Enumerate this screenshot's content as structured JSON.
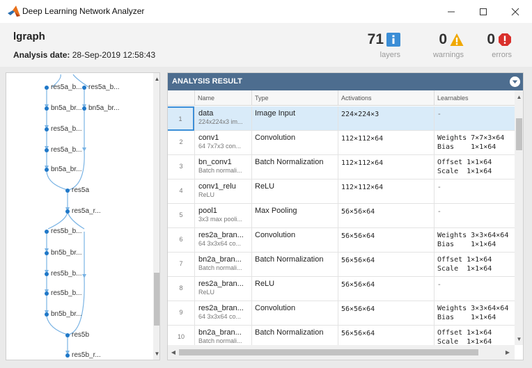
{
  "window": {
    "title": "Deep Learning Network Analyzer"
  },
  "summary": {
    "network_name": "lgraph",
    "analysis_date_label": "Analysis date:",
    "analysis_date_value": "28-Sep-2019 12:58:43",
    "layers": {
      "count": "71",
      "label": "layers",
      "icon": "info-icon"
    },
    "warnings": {
      "count": "0",
      "label": "warnings",
      "icon": "warning-icon"
    },
    "errors": {
      "count": "0",
      "label": "errors",
      "icon": "error-icon"
    }
  },
  "graph": {
    "nodes": [
      {
        "label": "res5a_b..."
      },
      {
        "label": "res5a_b..."
      },
      {
        "label": "bn5a_br..."
      },
      {
        "label": "bn5a_br..."
      },
      {
        "label": "res5a_b..."
      },
      {
        "label": "res5a_b..."
      },
      {
        "label": "bn5a_br..."
      },
      {
        "label": "res5a"
      },
      {
        "label": "res5a_r..."
      },
      {
        "label": "res5b_b..."
      },
      {
        "label": "bn5b_br..."
      },
      {
        "label": "res5b_b..."
      },
      {
        "label": "res5b_b..."
      },
      {
        "label": "bn5b_br..."
      },
      {
        "label": "res5b"
      },
      {
        "label": "res5b_r..."
      }
    ]
  },
  "result": {
    "title": "ANALYSIS RESULT",
    "columns": [
      "Name",
      "Type",
      "Activations",
      "Learnables"
    ],
    "rows": [
      {
        "index": "1",
        "name": "data",
        "desc": "224x224x3 im...",
        "type": "Image Input",
        "activations": "224×224×3",
        "learnables": [
          "-"
        ]
      },
      {
        "index": "2",
        "name": "conv1",
        "desc": "64 7x7x3 con...",
        "type": "Convolution",
        "activations": "112×112×64",
        "learnables": [
          "Weights 7×7×3×64",
          "Bias    1×1×64"
        ]
      },
      {
        "index": "3",
        "name": "bn_conv1",
        "desc": "Batch normali...",
        "type": "Batch Normalization",
        "activations": "112×112×64",
        "learnables": [
          "Offset 1×1×64",
          "Scale  1×1×64"
        ]
      },
      {
        "index": "4",
        "name": "conv1_relu",
        "desc": "ReLU",
        "type": "ReLU",
        "activations": "112×112×64",
        "learnables": [
          "-"
        ]
      },
      {
        "index": "5",
        "name": "pool1",
        "desc": "3x3 max pooli...",
        "type": "Max Pooling",
        "activations": "56×56×64",
        "learnables": [
          "-"
        ]
      },
      {
        "index": "6",
        "name": "res2a_bran...",
        "desc": "64 3x3x64 co...",
        "type": "Convolution",
        "activations": "56×56×64",
        "learnables": [
          "Weights 3×3×64×64",
          "Bias    1×1×64"
        ]
      },
      {
        "index": "7",
        "name": "bn2a_bran...",
        "desc": "Batch normali...",
        "type": "Batch Normalization",
        "activations": "56×56×64",
        "learnables": [
          "Offset 1×1×64",
          "Scale  1×1×64"
        ]
      },
      {
        "index": "8",
        "name": "res2a_bran...",
        "desc": "ReLU",
        "type": "ReLU",
        "activations": "56×56×64",
        "learnables": [
          "-"
        ]
      },
      {
        "index": "9",
        "name": "res2a_bran...",
        "desc": "64 3x3x64 co...",
        "type": "Convolution",
        "activations": "56×56×64",
        "learnables": [
          "Weights 3×3×64×64",
          "Bias    1×1×64"
        ]
      },
      {
        "index": "10",
        "name": "bn2a_bran...",
        "desc": "Batch normali...",
        "type": "Batch Normalization",
        "activations": "56×56×64",
        "learnables": [
          "Offset 1×1×64",
          "Scale  1×1×64"
        ]
      }
    ]
  },
  "colors": {
    "accent": "#4d6d8f",
    "info": "#3b8ed6",
    "warning": "#f0a800",
    "error": "#d9302c",
    "node": "#1f78c8",
    "edge": "#79b3e4",
    "selected_row": "#d9ebf9"
  }
}
